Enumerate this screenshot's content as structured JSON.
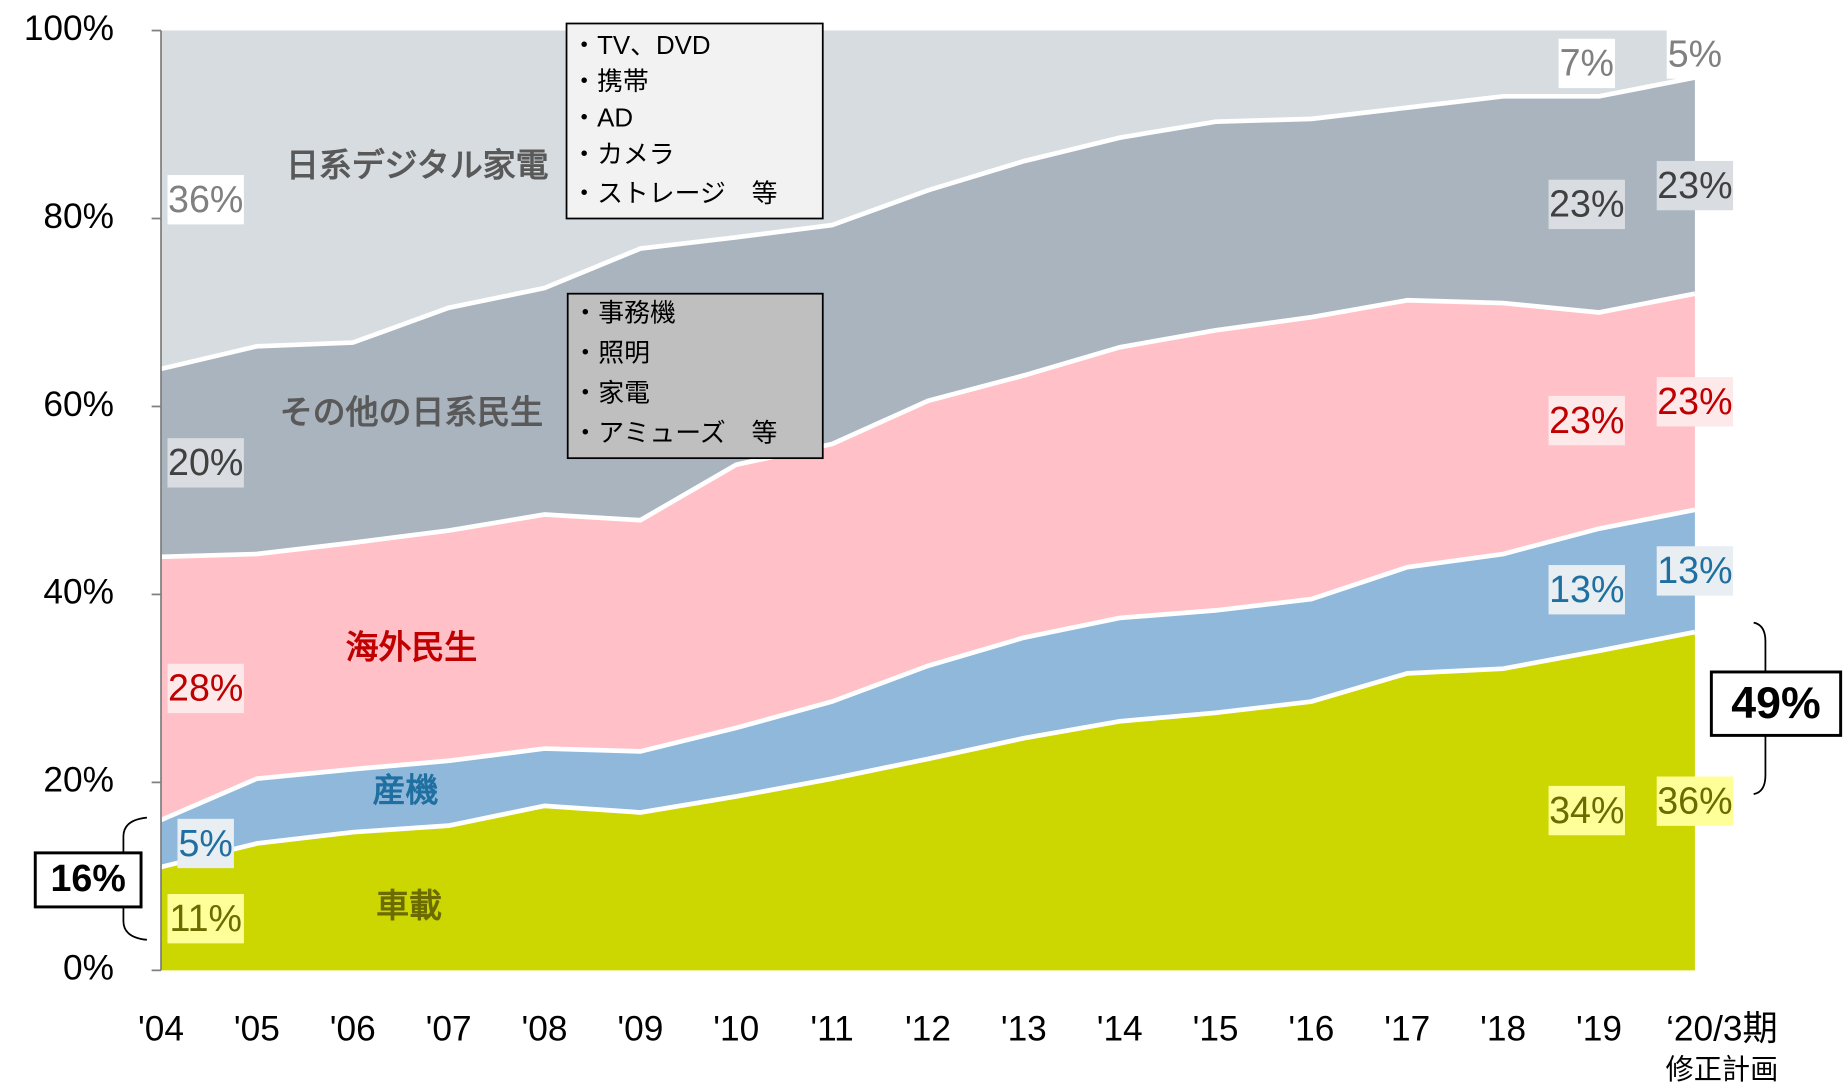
{
  "chart_data": {
    "type": "area",
    "stacked": true,
    "categories": [
      "'04",
      "'05",
      "'06",
      "'07",
      "'08",
      "'09",
      "'10",
      "'11",
      "'12",
      "'13",
      "'14",
      "'15",
      "'16",
      "'17",
      "'18",
      "'19",
      "‘20/3期"
    ],
    "category_note": "修正計画",
    "ylim": [
      0,
      100
    ],
    "yticks": [
      {
        "value": 0,
        "label": "0%"
      },
      {
        "value": 20,
        "label": "20%"
      },
      {
        "value": 40,
        "label": "40%"
      },
      {
        "value": 60,
        "label": "60%"
      },
      {
        "value": 80,
        "label": "80%"
      },
      {
        "value": 100,
        "label": "100%"
      }
    ],
    "series": [
      {
        "name": "車載",
        "color": "#ccd600",
        "label_color": "#6b6b00",
        "label_background": "#ffff99",
        "values": [
          11,
          13.5,
          14.7,
          15.4,
          17.5,
          16.8,
          18.5,
          20.4,
          22.5,
          24.7,
          26.5,
          27.4,
          28.6,
          31.6,
          32.1,
          34,
          36
        ],
        "value_labels": [
          "11%",
          null,
          null,
          null,
          null,
          null,
          null,
          null,
          null,
          null,
          null,
          null,
          null,
          null,
          null,
          "34%",
          "36%"
        ]
      },
      {
        "name": "産機",
        "color": "#8fb8db",
        "label_color": "#1f6fa0",
        "label_background": "#e9eef2",
        "values": [
          5,
          6.9,
          6.7,
          6.9,
          6.1,
          6.5,
          7.3,
          8.2,
          9.9,
          10.7,
          11,
          10.9,
          10.9,
          11.3,
          12.2,
          13,
          13
        ],
        "value_labels": [
          "5%",
          null,
          null,
          null,
          null,
          null,
          null,
          null,
          null,
          null,
          null,
          null,
          null,
          null,
          null,
          "13%",
          "13%"
        ]
      },
      {
        "name": "海外民生",
        "color": "#ffc0c8",
        "label_color": "#c00000",
        "label_background": "#fde8ea",
        "values": [
          28,
          23.9,
          24.1,
          24.5,
          24.9,
          24.6,
          28,
          27.4,
          28.2,
          27.9,
          28.8,
          29.8,
          30,
          28.4,
          26.7,
          23,
          23
        ],
        "value_labels": [
          "28%",
          null,
          null,
          null,
          null,
          null,
          null,
          null,
          null,
          null,
          null,
          null,
          null,
          null,
          null,
          "23%",
          "23%"
        ]
      },
      {
        "name": "その他の日系民生",
        "color": "#a9b4bf",
        "label_color": "#404040",
        "label_background": "#d9dde2",
        "values": [
          20,
          22.1,
          21.3,
          23.7,
          24.1,
          28.9,
          24.2,
          23.3,
          22.4,
          22.8,
          22.3,
          22.2,
          21.1,
          20.5,
          22,
          23,
          23
        ],
        "value_labels": [
          "20%",
          null,
          null,
          null,
          null,
          null,
          null,
          null,
          null,
          null,
          null,
          null,
          null,
          null,
          null,
          "23%",
          "23%"
        ]
      },
      {
        "name": "日系デジタル家電",
        "color": "#d6dce0",
        "label_color": "#808080",
        "label_background": "#ffffff",
        "values": [
          36,
          33.6,
          33.2,
          29.5,
          27.4,
          23.2,
          22,
          20.7,
          17,
          13.9,
          11.4,
          9.7,
          9.4,
          8.2,
          7,
          7,
          5
        ],
        "value_labels": [
          "36%",
          null,
          null,
          null,
          null,
          null,
          null,
          null,
          null,
          null,
          null,
          null,
          null,
          null,
          null,
          "7%",
          "5%"
        ]
      }
    ],
    "notes": [
      {
        "items": [
          "・TV、DVD",
          "・携帯",
          "・AD",
          "・カメラ",
          "・ストレージ　等"
        ]
      },
      {
        "items": [
          "・事務機",
          "・照明",
          "・家電",
          "・アミューズ　等"
        ]
      }
    ],
    "brackets": [
      {
        "label": "16%"
      },
      {
        "label": "49%"
      }
    ]
  }
}
